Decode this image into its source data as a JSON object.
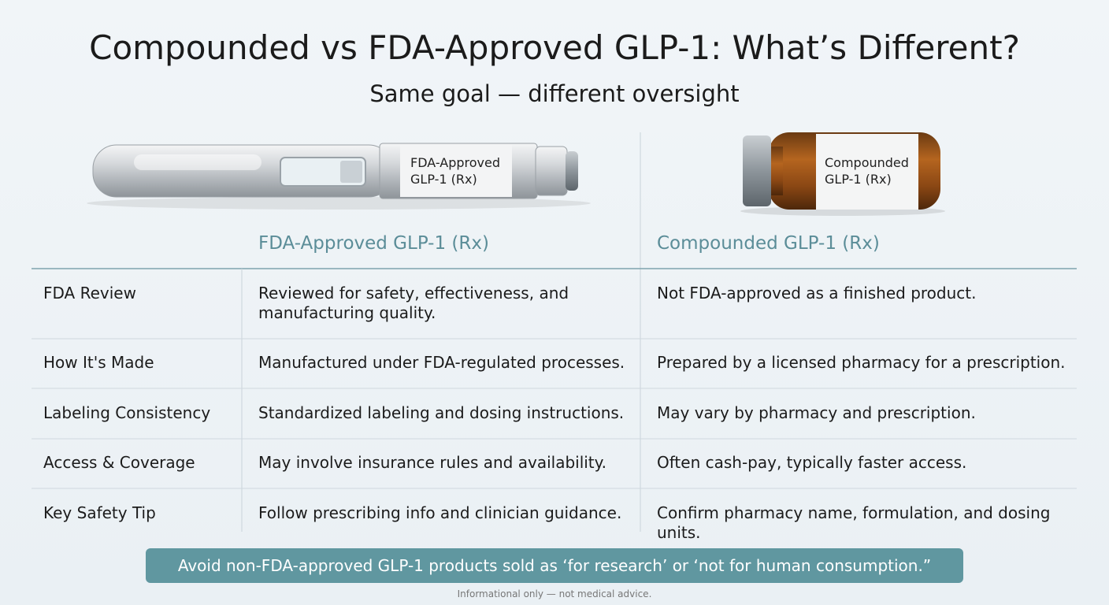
{
  "header": {
    "title": "Compounded vs FDA-Approved GLP-1: What’s Different?",
    "subtitle": "Same goal — different oversight"
  },
  "products": {
    "pen_label": [
      "FDA-Approved",
      "GLP-1 (Rx)"
    ],
    "vial_label": [
      "Compounded",
      "GLP-1 (Rx)"
    ]
  },
  "table": {
    "columns": [
      "FDA-Approved GLP-1 (Rx)",
      "Compounded GLP-1 (Rx)"
    ],
    "rows": [
      [
        "FDA Review",
        "Reviewed for safety, effectiveness, and manufacturing quality.",
        "Not FDA-approved as a finished product."
      ],
      [
        "How It's Made",
        "Manufactured under FDA-regulated processes.",
        "Prepared by a licensed pharmacy for a prescription."
      ],
      [
        "Labeling Consistency",
        "Standardized labeling and dosing instructions.",
        "May vary by pharmacy and prescription."
      ],
      [
        "Access & Coverage",
        "May involve insurance rules and availability.",
        "Often cash-pay, typically faster access."
      ],
      [
        "Key Safety Tip",
        "Follow prescribing info and clinician guidance.",
        "Confirm pharmacy name, formulation, and dosing units."
      ]
    ]
  },
  "banner": "Avoid non-FDA-approved GLP-1 products sold as ‘for research’ or ‘not for human consumption.”",
  "footer": "Informational only — not medical advice."
}
